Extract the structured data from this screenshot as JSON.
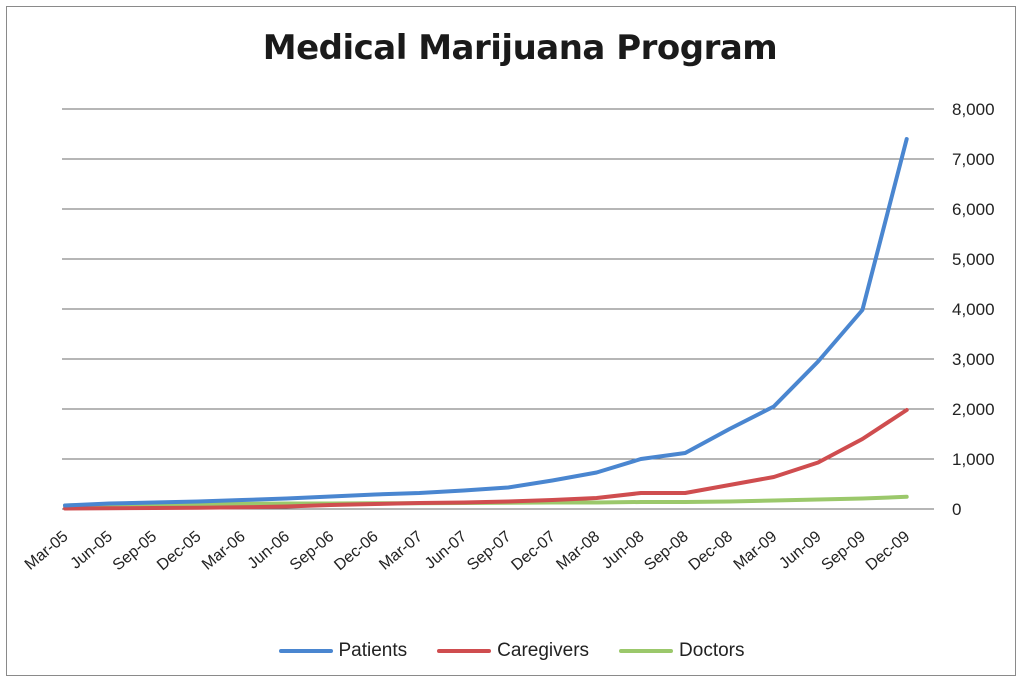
{
  "chart_data": {
    "type": "line",
    "title": "Medical Marijuana Program",
    "xlabel": "",
    "ylabel": "",
    "ylim": [
      0,
      8000
    ],
    "yticks": [
      0,
      1000,
      2000,
      3000,
      4000,
      5000,
      6000,
      7000,
      8000
    ],
    "ytick_labels": [
      "0",
      "1,000",
      "2,000",
      "3,000",
      "4,000",
      "5,000",
      "6,000",
      "7,000",
      "8,000"
    ],
    "y_axis_side": "right",
    "grid": true,
    "legend_position": "bottom",
    "categories": [
      "Mar-05",
      "Jun-05",
      "Sep-05",
      "Dec-05",
      "Mar-06",
      "Jun-06",
      "Sep-06",
      "Dec-06",
      "Mar-07",
      "Jun-07",
      "Sep-07",
      "Dec-07",
      "Mar-08",
      "Jun-08",
      "Sep-08",
      "Dec-08",
      "Mar-09",
      "Jun-09",
      "Sep-09",
      "Dec-09"
    ],
    "series": [
      {
        "name": "Patients",
        "color": "#4a86d0",
        "values": [
          70,
          110,
          130,
          150,
          180,
          210,
          250,
          290,
          320,
          370,
          430,
          570,
          730,
          1000,
          1120,
          1600,
          2050,
          2950,
          3980,
          7400
        ]
      },
      {
        "name": "Caregivers",
        "color": "#cf4d4f",
        "values": [
          10,
          15,
          20,
          25,
          35,
          50,
          80,
          100,
          120,
          130,
          150,
          180,
          220,
          320,
          320,
          480,
          640,
          930,
          1400,
          1980
        ]
      },
      {
        "name": "Doctors",
        "color": "#9bc86b",
        "values": [
          70,
          90,
          100,
          100,
          105,
          110,
          110,
          115,
          115,
          120,
          125,
          130,
          130,
          140,
          140,
          150,
          170,
          190,
          210,
          245
        ]
      }
    ]
  }
}
